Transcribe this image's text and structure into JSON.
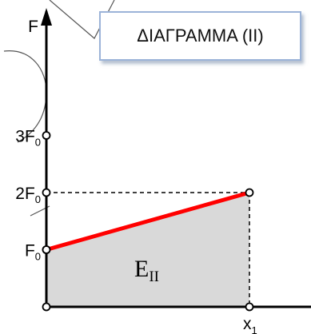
{
  "title": "ΔΙΑΓΡΑΜΜΑ (ΙΙ)",
  "chart_data": {
    "type": "line",
    "title": "ΔΙΑΓΡΑΜΜΑ (ΙΙ)",
    "ylabel": "F",
    "xlabel": "",
    "x_tick": {
      "base": "x",
      "sub": "1"
    },
    "y_ticks": [
      {
        "value": 1,
        "coef": "",
        "base": "F",
        "sub": "0"
      },
      {
        "value": 2,
        "coef": "2",
        "base": "F",
        "sub": "0"
      },
      {
        "value": 3,
        "coef": "3",
        "base": "F",
        "sub": "0"
      }
    ],
    "series": [
      {
        "x": [
          0,
          1
        ],
        "y": [
          1,
          2
        ],
        "color": "#ff0000"
      }
    ],
    "shaded_area": {
      "label_base": "E",
      "label_sub": "II",
      "color": "#d9d9d9"
    },
    "xlim": [
      0,
      1.2
    ],
    "ylim": [
      0,
      4.4
    ],
    "grid": false,
    "legend": "none"
  }
}
